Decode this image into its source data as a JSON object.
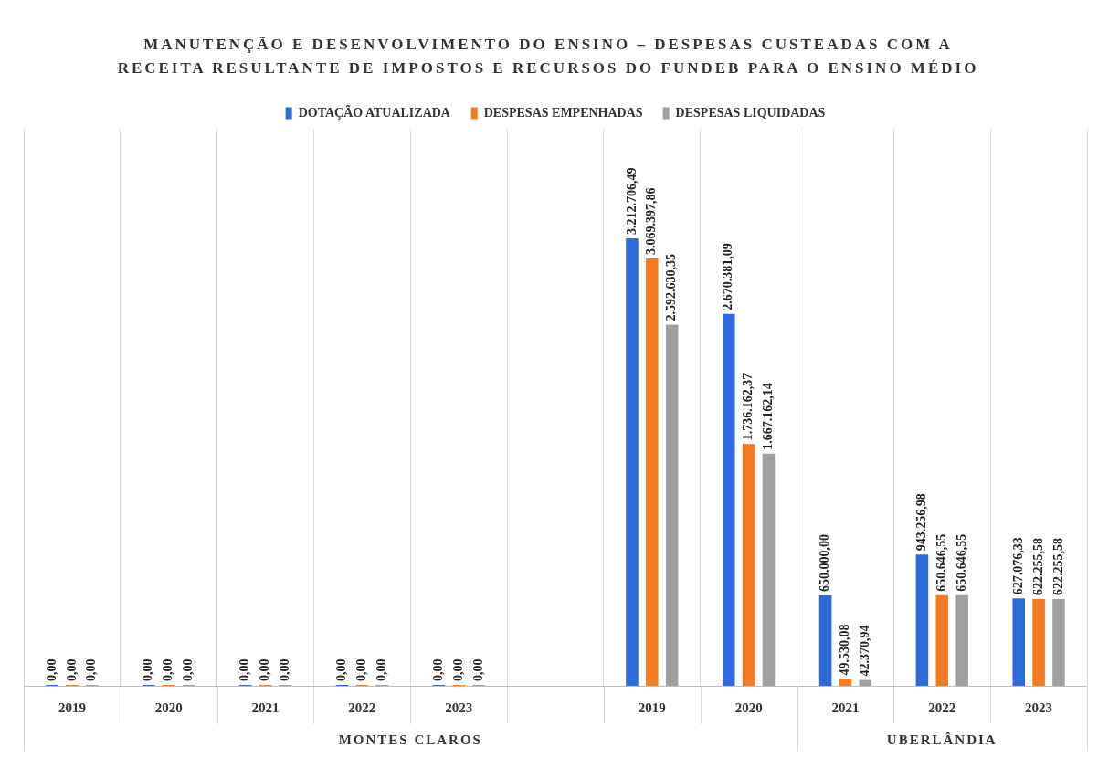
{
  "chart_data": {
    "type": "bar",
    "title": "MANUTENÇÃO E DESENVOLVIMENTO DO ENSINO – DESPESAS CUSTEADAS COM A RECEITA RESULTANTE DE IMPOSTOS E RECURSOS DO FUNDEB  PARA O ENSINO MÉDIO",
    "categories": [
      "2019",
      "2020",
      "2021",
      "2022",
      "2023",
      null,
      "2019",
      "2020",
      "2021",
      "2022",
      "2023"
    ],
    "series": [
      {
        "name": "DOTAÇÃO ATUALIZADA",
        "color": "#2e6ad8",
        "values": [
          0,
          0,
          0,
          0,
          0,
          null,
          3212706.49,
          2670381.09,
          650000.0,
          943256.98,
          627076.33
        ],
        "value_labels": [
          "0,00",
          "0,00",
          "0,00",
          "0,00",
          "0,00",
          null,
          "3.212.706,49",
          "2.670.381,09",
          "650.000,00",
          "943.256,98",
          "627.076,33"
        ]
      },
      {
        "name": "DESPESAS EMPENHADAS",
        "color": "#f47b20",
        "values": [
          0,
          0,
          0,
          0,
          0,
          null,
          3069397.86,
          1736162.37,
          49530.08,
          650646.55,
          622255.58
        ],
        "value_labels": [
          "0,00",
          "0,00",
          "0,00",
          "0,00",
          "0,00",
          null,
          "3.069.397,86",
          "1.736.162,37",
          "49.530,08",
          "650.646,55",
          "622.255,58"
        ]
      },
      {
        "name": "DESPESAS LIQUIDADAS",
        "color": "#a0a0a0",
        "values": [
          0,
          0,
          0,
          0,
          0,
          null,
          2592630.35,
          1667162.14,
          42370.94,
          650646.55,
          622255.58
        ],
        "value_labels": [
          "0,00",
          "0,00",
          "0,00",
          "0,00",
          "0,00",
          null,
          "2.592.630,35",
          "1.667.162,14",
          "42.370,94",
          "650.646,55",
          "622.255,58"
        ]
      }
    ],
    "annotations": [
      "MONTES CLAROS",
      "UBERLÂNDIA"
    ],
    "legend": "top",
    "grid": "x"
  }
}
